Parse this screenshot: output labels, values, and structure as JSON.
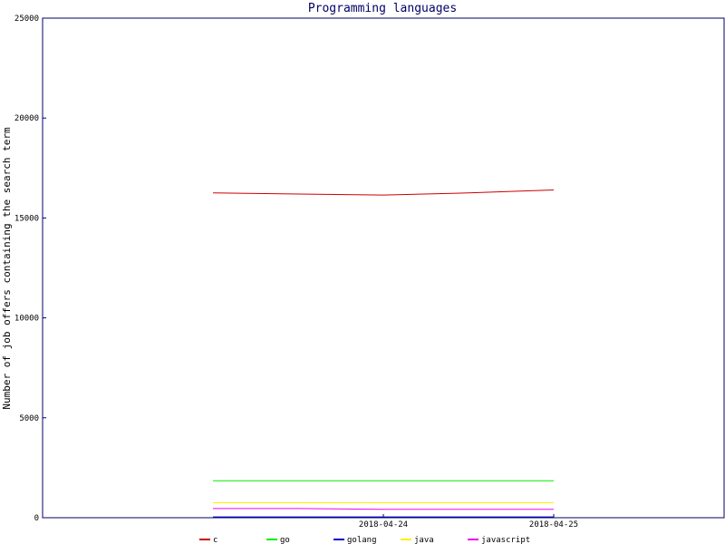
{
  "chart_data": {
    "type": "line",
    "title": "Programming languages",
    "xlabel": "",
    "ylabel": "Number of job offers containing the search term",
    "x": [
      "2018-04-23",
      "2018-04-23 12:00",
      "2018-04-24",
      "2018-04-24 12:00",
      "2018-04-25"
    ],
    "x_tick_labels": [
      "2018-04-24",
      "2018-04-25"
    ],
    "ylim": [
      0,
      25000
    ],
    "y_ticks": [
      0,
      5000,
      10000,
      15000,
      20000,
      25000
    ],
    "xlim": [
      "2018-04-22",
      "2018-04-26"
    ],
    "grid": false,
    "legend_position": "bottom",
    "series": [
      {
        "name": "c",
        "color": "#cc0000",
        "values": [
          16250,
          16200,
          16150,
          16250,
          16400
        ]
      },
      {
        "name": "go",
        "color": "#00ee00",
        "values": [
          1850,
          1850,
          1850,
          1850,
          1850
        ]
      },
      {
        "name": "golang",
        "color": "#0000cc",
        "values": [
          40,
          40,
          40,
          40,
          40
        ]
      },
      {
        "name": "java",
        "color": "#ffee00",
        "values": [
          750,
          750,
          750,
          750,
          750
        ]
      },
      {
        "name": "javascript",
        "color": "#ee00ee",
        "values": [
          460,
          460,
          420,
          420,
          420
        ]
      }
    ]
  }
}
